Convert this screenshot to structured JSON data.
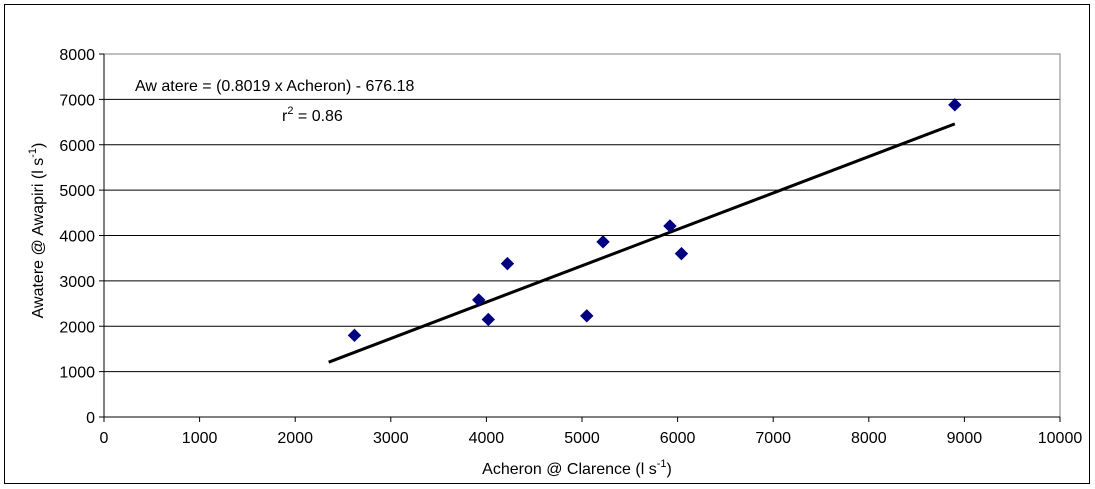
{
  "chart_data": {
    "type": "scatter",
    "xlabel": "Acheron @ Clarence (l s",
    "xlabel_sup": "-1",
    "xlabel_end": ")",
    "ylabel": "Awatere @ Awapiri (l s",
    "ylabel_sup": "-1",
    "ylabel_end": ")",
    "xlim": [
      0,
      10000
    ],
    "ylim": [
      0,
      8000
    ],
    "x_ticks": [
      0,
      1000,
      2000,
      3000,
      4000,
      5000,
      6000,
      7000,
      8000,
      9000,
      10000
    ],
    "y_ticks": [
      0,
      1000,
      2000,
      3000,
      4000,
      5000,
      6000,
      7000,
      8000
    ],
    "grid": "horizontal",
    "marker_color": "#000080",
    "trendline_color": "#000000",
    "series": [
      {
        "points": [
          {
            "x": 2620,
            "y": 1800
          },
          {
            "x": 3920,
            "y": 2580
          },
          {
            "x": 4020,
            "y": 2150
          },
          {
            "x": 4220,
            "y": 3380
          },
          {
            "x": 5050,
            "y": 2230
          },
          {
            "x": 5220,
            "y": 3860
          },
          {
            "x": 5920,
            "y": 4210
          },
          {
            "x": 6040,
            "y": 3600
          },
          {
            "x": 8900,
            "y": 6880
          }
        ]
      }
    ],
    "trendline": {
      "slope": 0.8019,
      "intercept": -676.18,
      "x_range": [
        2350,
        8900
      ]
    },
    "annotations": {
      "equation": "Aw atere = (0.8019 x Acheron) - 676.18",
      "r2_prefix": "r",
      "r2_sup": "2",
      "r2_suffix": " = 0.86"
    }
  }
}
